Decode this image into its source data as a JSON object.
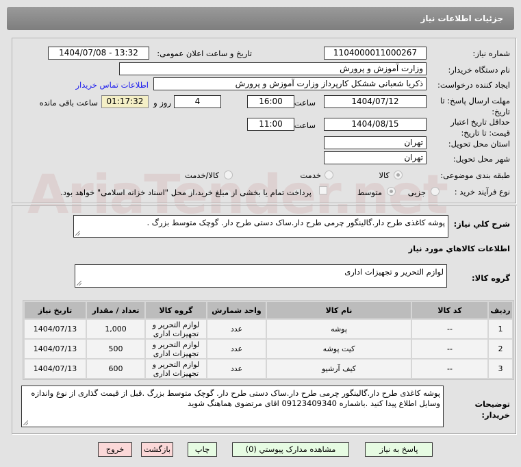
{
  "header": {
    "title": "جزئیات اطلاعات نیاز"
  },
  "watermark": "AriaTender.net",
  "form": {
    "need_number": {
      "label": "شماره نیاز:",
      "value": "1104000011000267"
    },
    "announce": {
      "label": "تاریخ و ساعت اعلان عمومی:",
      "value": "1404/07/08 - 13:32"
    },
    "buyer_org": {
      "label": "نام دستگاه خریدار:",
      "value": "وزارت آموزش و پرورش"
    },
    "requester": {
      "label": "ایجاد کننده درخواست:",
      "value": "ذکریا شعبانی ششکل کارپرداز وزارت آموزش و پرورش",
      "contact_link": "اطلاعات تماس خریدار"
    },
    "deadline": {
      "label": "مهلت ارسال پاسخ: تا تاریخ:",
      "date": "1404/07/12",
      "time_label": "ساعت",
      "time": "16:00",
      "days": "4",
      "days_label": "روز و",
      "remaining": "01:17:32",
      "remaining_label": "ساعت باقی مانده"
    },
    "validity": {
      "label": "حداقل تاریخ اعتبار قیمت: تا تاریخ:",
      "date": "1404/08/15",
      "time_label": "ساعت",
      "time": "11:00"
    },
    "province": {
      "label": "استان محل تحویل:",
      "value": "تهران"
    },
    "city": {
      "label": "شهر محل تحویل:",
      "value": "تهران"
    },
    "category": {
      "label": "طبقه بندی موضوعی:",
      "options": [
        "کالا",
        "خدمت",
        "کالا/خدمت"
      ],
      "selected": "کالا"
    },
    "process": {
      "label": "نوع فرآیند خرید :",
      "options": [
        "جزیی",
        "متوسط"
      ],
      "selected": "متوسط",
      "checkbox_label": "پرداخت تمام یا بخشی از مبلغ خرید،از محل \"اسناد خزانه اسلامی\" خواهد بود.",
      "checkbox_checked": false
    }
  },
  "details": {
    "summary_label": "شرح کلي نیاز:",
    "summary": "پوشه کاغذی طرح دار.گالینگور چرمی طرح دار.ساک دستی طرح دار. گوچک متوسط بزرگ .",
    "goods_title": "اطلاعات کالاهاي مورد نیاز",
    "group_label": "گروه کالا:",
    "group": "لوازم التحریر و تجهیزات اداری",
    "table": {
      "headers": [
        "ردیف",
        "کد کالا",
        "نام کالا",
        "واحد شمارش",
        "گروه کالا",
        "تعداد / مقدار",
        "تاریخ نیاز"
      ],
      "rows": [
        [
          "1",
          "--",
          "پوشه",
          "عدد",
          "لوازم التحریر و تجهیزات اداری",
          "1,000",
          "1404/07/13"
        ],
        [
          "2",
          "--",
          "کیت پوشه",
          "عدد",
          "لوازم التحریر و تجهیزات اداری",
          "500",
          "1404/07/13"
        ],
        [
          "3",
          "--",
          "کیف آرشیو",
          "عدد",
          "لوازم التحریر و تجهیزات اداری",
          "600",
          "1404/07/13"
        ]
      ]
    },
    "notes_label": "توضیحات خریدار:",
    "notes": "پوشه کاغذی طرح دار.گالینگور چرمی طرح دار.ساک دستی طرح دار. گوچک متوسط بزرگ .قبل از قیمت گذاری از نوع واندازه وسایل اطلاع پیدا کنید .باشماره 09123409340 اقای مرتضوی هماهنگ شوید"
  },
  "buttons": {
    "reply": "پاسخ به نیاز",
    "attachments": "مشاهده مدارک پیوستي (0)",
    "print": "چاپ",
    "back": "بازگشت",
    "exit": "خروج"
  }
}
